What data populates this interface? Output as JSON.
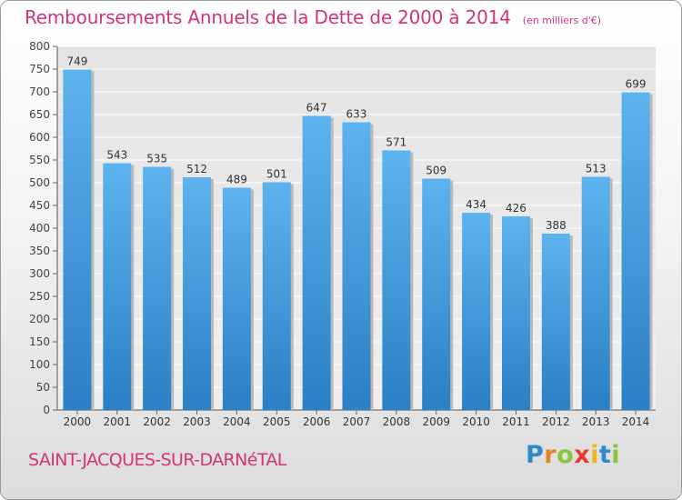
{
  "header": {
    "title": "Remboursements Annuels de la Dette de 2000 à 2014",
    "units": "(en milliers d'€)"
  },
  "footer": {
    "commune": "SAINT-JACQUES-SUR-DARNéTAL",
    "logo_letters": [
      {
        "char": "P",
        "color": "#2f89c9"
      },
      {
        "char": "r",
        "color": "#e3851a"
      },
      {
        "char": "o",
        "color": "#8cc43f"
      },
      {
        "char": "x",
        "color": "#e83a2e"
      },
      {
        "char": "i",
        "color": "#f0b41c"
      },
      {
        "char": "t",
        "color": "#2f89c9"
      },
      {
        "char": "i",
        "color": "#8cc43f"
      }
    ]
  },
  "chart_data": {
    "type": "bar",
    "title": "Remboursements Annuels de la Dette de 2000 à 2014",
    "categories": [
      "2000",
      "2001",
      "2002",
      "2003",
      "2004",
      "2005",
      "2006",
      "2007",
      "2008",
      "2009",
      "2010",
      "2011",
      "2012",
      "2013",
      "2014"
    ],
    "values": [
      749,
      543,
      535,
      512,
      489,
      501,
      647,
      633,
      571,
      509,
      434,
      426,
      388,
      513,
      699
    ],
    "ylim": [
      0,
      800
    ],
    "ytick_step": 50,
    "grid": true,
    "bar_color": "#3f9ee3"
  }
}
